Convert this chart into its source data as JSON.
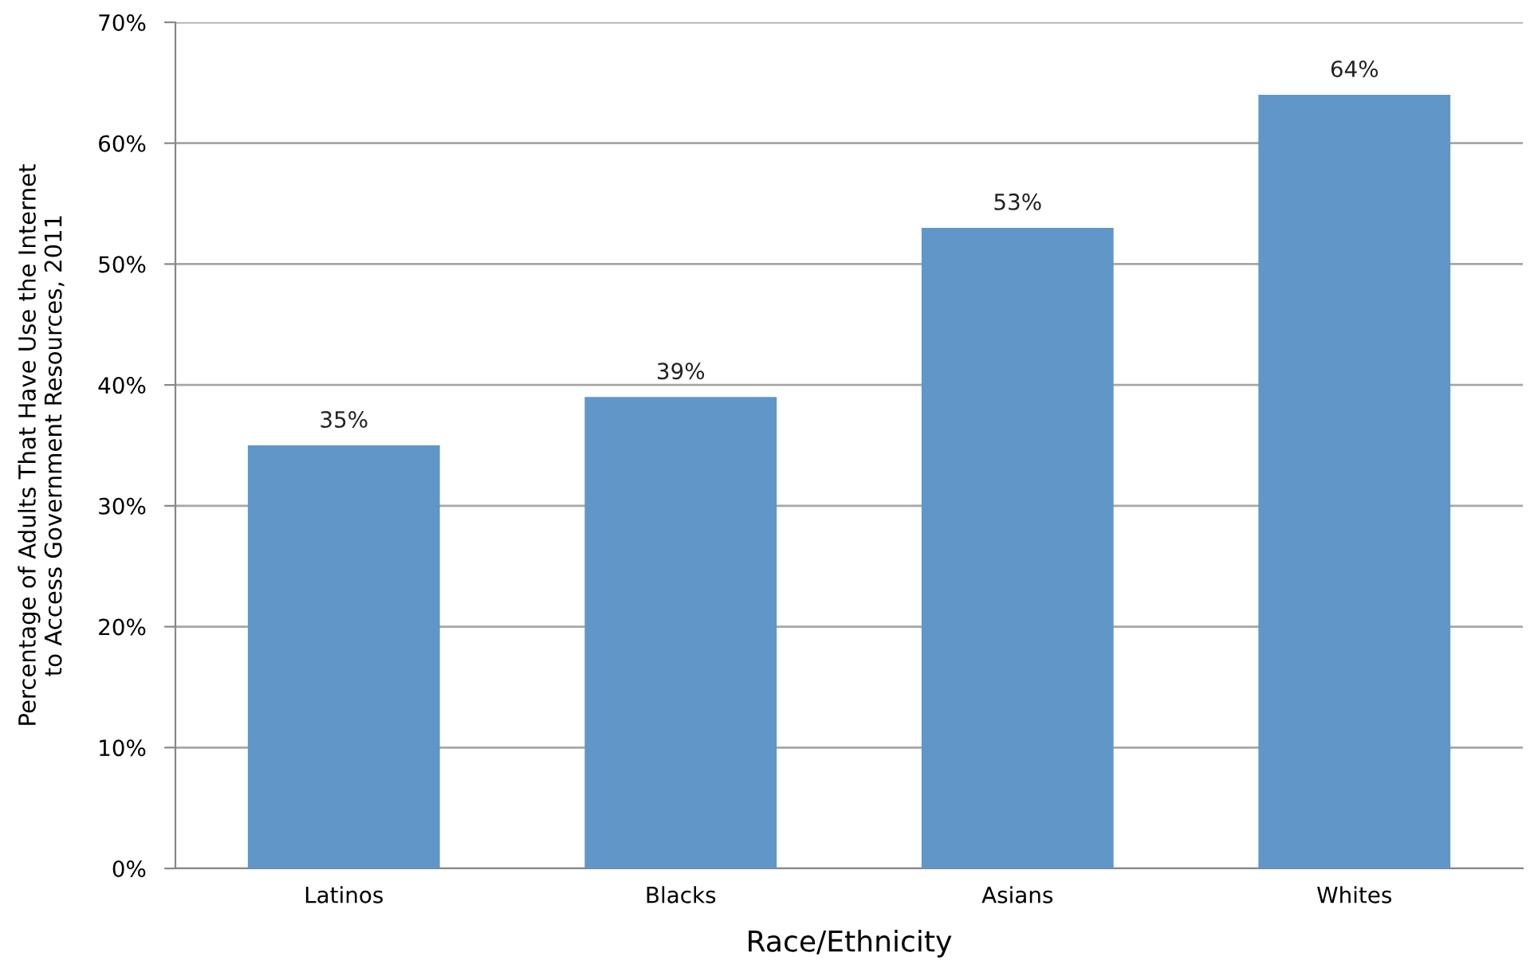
{
  "chart_data": {
    "type": "bar",
    "xlabel": "Race/Ethnicity",
    "ylabel": "Percentage of Adults That Have Use the Internet\nto Access Government Resources, 2011",
    "categories": [
      "Latinos",
      "Blacks",
      "Asians",
      "Whites"
    ],
    "values": [
      35,
      39,
      53,
      64
    ],
    "color": "#6096c8",
    "value_labels": [
      "35%",
      "39%",
      "53%",
      "64%"
    ],
    "ylim": [
      0,
      70
    ],
    "yticks": [
      {
        "value": 0,
        "label": "0%"
      },
      {
        "value": 10,
        "label": "10%"
      },
      {
        "value": 20,
        "label": "20%"
      },
      {
        "value": 30,
        "label": "30%"
      },
      {
        "value": 40,
        "label": "40%"
      },
      {
        "value": 50,
        "label": "50%"
      },
      {
        "value": 60,
        "label": "60%"
      },
      {
        "value": 70,
        "label": "70%"
      }
    ],
    "grid": "y",
    "legend": false
  }
}
